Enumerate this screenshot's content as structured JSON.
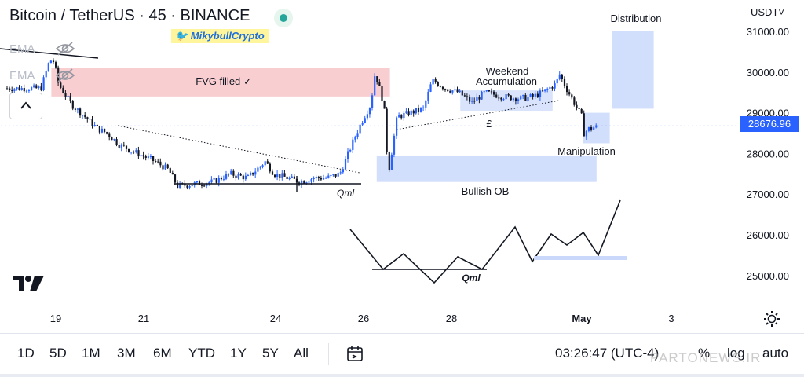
{
  "header": {
    "title": "Bitcoin / TetherUS · 45 · BINANCE",
    "author": "🐦 MikybullCrypto",
    "indicators": [
      "EMA",
      "EMA"
    ],
    "currency": "USDT˅"
  },
  "colors": {
    "up": "#2962ff",
    "down": "#131722",
    "fvg_zone": "#f7c6c9",
    "ob_zone": "#c9d8fb",
    "accent": "#2962ff"
  },
  "chart_data": {
    "type": "candlestick",
    "symbol": "BTC/USDT",
    "interval": "45",
    "exchange": "BINANCE",
    "ylim": [
      24300,
      31500
    ],
    "y_ticks": [
      25000,
      26000,
      27000,
      28000,
      29000,
      30000,
      31000
    ],
    "y_tick_labels": [
      "25000.00",
      "26000.00",
      "27000.00",
      "28000.00",
      "29000.00",
      "30000.00",
      "31000.00"
    ],
    "x_ticks": [
      "19",
      "21",
      "24",
      "26",
      "28",
      "May",
      "3"
    ],
    "last_price": 28676.96,
    "last_price_label": "28676.96",
    "series": [
      {
        "price_path": [
          [
            18.7,
            29600
          ],
          [
            18.9,
            30300
          ],
          [
            19.0,
            30250
          ],
          [
            19.1,
            29700
          ],
          [
            19.4,
            29200
          ],
          [
            19.8,
            28800
          ],
          [
            20.0,
            28600
          ],
          [
            20.2,
            28500
          ],
          [
            20.5,
            28200
          ],
          [
            20.9,
            28000
          ],
          [
            21.3,
            27800
          ],
          [
            21.6,
            27600
          ],
          [
            21.8,
            27200
          ],
          [
            22.2,
            27250
          ],
          [
            22.6,
            27300
          ],
          [
            23.0,
            27500
          ],
          [
            23.4,
            27400
          ],
          [
            23.8,
            27800
          ],
          [
            24.0,
            27500
          ],
          [
            24.3,
            27400
          ],
          [
            24.6,
            27300
          ],
          [
            24.9,
            27400
          ],
          [
            25.2,
            27400
          ],
          [
            25.5,
            27500
          ],
          [
            25.8,
            28300
          ],
          [
            26.0,
            28800
          ],
          [
            26.2,
            29200
          ],
          [
            26.3,
            30000
          ],
          [
            26.5,
            29200
          ],
          [
            26.6,
            27500
          ],
          [
            26.8,
            28900
          ],
          [
            27.1,
            29000
          ],
          [
            27.4,
            29100
          ],
          [
            27.6,
            29800
          ],
          [
            27.9,
            29600
          ],
          [
            28.2,
            29500
          ],
          [
            28.5,
            29250
          ],
          [
            28.8,
            29500
          ],
          [
            29.2,
            29400
          ],
          [
            29.6,
            29350
          ],
          [
            29.9,
            29400
          ],
          [
            30.1,
            29500
          ],
          [
            30.4,
            29700
          ],
          [
            30.5,
            29950
          ],
          [
            30.6,
            29700
          ],
          [
            30.8,
            29300
          ],
          [
            31.0,
            28900
          ],
          [
            31.05,
            28500
          ],
          [
            31.15,
            28600
          ],
          [
            31.3,
            28650
          ]
        ]
      }
    ],
    "zones": [
      {
        "label": "FVG filled ✓",
        "x": [
          18.9,
          26.6
        ],
        "y": [
          29400,
          30100
        ]
      },
      {
        "label": "Bullish OB",
        "x": [
          26.3,
          31.3
        ],
        "y": [
          27300,
          27950
        ]
      },
      {
        "label": "Distribution",
        "x": [
          31.65,
          32.6
        ],
        "y": [
          29100,
          31000
        ]
      },
      {
        "label": "Manipulation",
        "x": [
          31.0,
          31.6
        ],
        "y": [
          28250,
          29000
        ]
      },
      {
        "label": "Weekend Accumulation",
        "x": [
          28.2,
          30.3
        ],
        "y": [
          29050,
          29550
        ]
      }
    ],
    "annotations": [
      "Weekend",
      "Accumulation",
      "£",
      "Qml",
      "Qml"
    ],
    "schematic_labels": [
      "Qml"
    ]
  },
  "toolbar": {
    "timeframes": [
      "1D",
      "5D",
      "1M",
      "3M",
      "6M",
      "YTD",
      "1Y",
      "5Y",
      "All"
    ],
    "clock": "03:26:47 (UTC-4)",
    "percent": "%",
    "log": "log",
    "auto": "auto"
  },
  "watermark": "PARTONEWS.IR",
  "icons": [
    "eye-off-icon",
    "chevron-up-icon",
    "calendar-range-icon",
    "settings-icon",
    "tradingview-logo"
  ]
}
